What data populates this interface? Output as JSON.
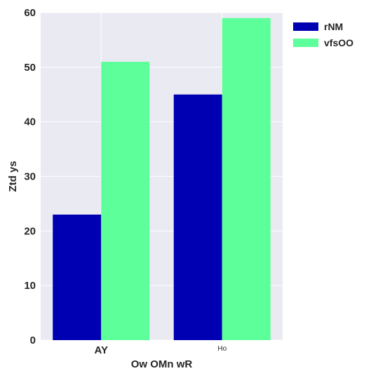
{
  "chart_data": {
    "type": "bar",
    "categories": [
      "AY",
      "Ho"
    ],
    "series": [
      {
        "name": "rNM",
        "values": [
          23,
          45
        ],
        "color": "#0000b3"
      },
      {
        "name": "vfsOO",
        "values": [
          51,
          59
        ],
        "color": "#5cff99"
      }
    ],
    "title": "",
    "xlabel": "Ow OMn wR",
    "ylabel": "Ztd ys",
    "ylim": [
      0,
      60
    ],
    "yticks": [
      0,
      10,
      20,
      30,
      40,
      50,
      60
    ],
    "grid": true,
    "legend_position": "outside-top-right",
    "plot_background": "#eaeaf2",
    "grid_color": "#ffffff"
  }
}
